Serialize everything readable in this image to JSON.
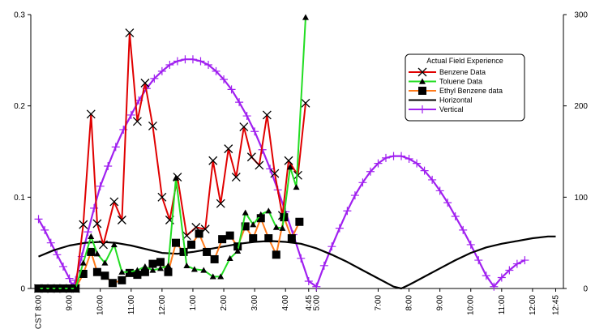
{
  "chart_data": {
    "type": "line",
    "title": "",
    "xlabel": "",
    "ylabel": "",
    "x_tick_labels": [
      "CST 8:00",
      "9:00",
      "10:00",
      "11:00",
      "12:00",
      "1:00",
      "2:00",
      "3:00",
      "4:00",
      "4:45",
      "5:00",
      "7:00",
      "8:00",
      "9:00",
      "10:00",
      "11:00",
      "12:00",
      "12:45"
    ],
    "x_tick_hours": [
      8,
      9,
      10,
      11,
      12,
      13,
      14,
      15,
      16,
      16.75,
      17,
      19,
      20,
      21,
      22,
      23,
      24,
      24.75
    ],
    "xlim": [
      7.75,
      25
    ],
    "y_left": {
      "ylim": [
        0,
        0.3
      ],
      "ticks": [
        0,
        0.1,
        0.2,
        0.3
      ],
      "tick_labels": [
        "0",
        "0.1",
        "0.2",
        "0.3"
      ]
    },
    "y_right": {
      "ylim": [
        0,
        300
      ],
      "ticks": [
        0,
        100,
        200,
        300
      ],
      "tick_labels": [
        "0",
        "100",
        "200",
        "300"
      ]
    },
    "legend": {
      "title": "Actual Field Experience",
      "placement": "top-right"
    },
    "series": [
      {
        "name": "Benzene Data",
        "axis": "left",
        "color": "#e00000",
        "marker": "x",
        "points": [
          [
            8,
            0
          ],
          [
            8.2,
            0
          ],
          [
            8.4,
            0
          ],
          [
            8.6,
            0
          ],
          [
            8.8,
            0
          ],
          [
            9,
            0
          ],
          [
            9.2,
            0
          ],
          [
            9.45,
            0.07
          ],
          [
            9.7,
            0.191
          ],
          [
            9.9,
            0.071
          ],
          [
            10.1,
            0.048
          ],
          [
            10.45,
            0.095
          ],
          [
            10.7,
            0.075
          ],
          [
            10.95,
            0.28
          ],
          [
            11.2,
            0.183
          ],
          [
            11.45,
            0.225
          ],
          [
            11.7,
            0.178
          ],
          [
            12.0,
            0.1
          ],
          [
            12.25,
            0.075
          ],
          [
            12.5,
            0.122
          ],
          [
            12.8,
            0.058
          ],
          [
            13.1,
            0.067
          ],
          [
            13.4,
            0.065
          ],
          [
            13.65,
            0.14
          ],
          [
            13.9,
            0.093
          ],
          [
            14.15,
            0.153
          ],
          [
            14.4,
            0.122
          ],
          [
            14.65,
            0.177
          ],
          [
            14.9,
            0.144
          ],
          [
            15.15,
            0.135
          ],
          [
            15.4,
            0.19
          ],
          [
            15.65,
            0.126
          ],
          [
            15.9,
            0.08
          ],
          [
            16.1,
            0.14
          ],
          [
            16.4,
            0.124
          ],
          [
            16.65,
            0.203
          ]
        ]
      },
      {
        "name": "Toluene Data",
        "axis": "left",
        "color": "#22dd22",
        "marker": "triangle",
        "points": [
          [
            8,
            0
          ],
          [
            8.2,
            0
          ],
          [
            8.4,
            0
          ],
          [
            8.6,
            0
          ],
          [
            8.8,
            0
          ],
          [
            9,
            0
          ],
          [
            9.2,
            0
          ],
          [
            9.45,
            0.028
          ],
          [
            9.7,
            0.057
          ],
          [
            9.9,
            0.038
          ],
          [
            10.15,
            0.028
          ],
          [
            10.45,
            0.048
          ],
          [
            10.7,
            0.018
          ],
          [
            10.95,
            0.018
          ],
          [
            11.2,
            0.02
          ],
          [
            11.45,
            0.024
          ],
          [
            11.7,
            0.02
          ],
          [
            11.95,
            0.022
          ],
          [
            12.2,
            0.025
          ],
          [
            12.45,
            0.121
          ],
          [
            12.8,
            0.025
          ],
          [
            13.05,
            0.021
          ],
          [
            13.35,
            0.02
          ],
          [
            13.65,
            0.013
          ],
          [
            13.9,
            0.013
          ],
          [
            14.2,
            0.033
          ],
          [
            14.45,
            0.041
          ],
          [
            14.7,
            0.083
          ],
          [
            14.95,
            0.07
          ],
          [
            15.2,
            0.081
          ],
          [
            15.45,
            0.085
          ],
          [
            15.7,
            0.067
          ],
          [
            15.9,
            0.066
          ],
          [
            16.15,
            0.133
          ],
          [
            16.35,
            0.111
          ],
          [
            16.65,
            0.297
          ]
        ]
      },
      {
        "name": "Ethyl Benzene data",
        "axis": "left",
        "color": "#ff7a1a",
        "marker": "square",
        "points": [
          [
            8,
            0
          ],
          [
            8.2,
            0
          ],
          [
            8.4,
            0
          ],
          [
            8.6,
            0
          ],
          [
            8.8,
            0
          ],
          [
            9,
            0
          ],
          [
            9.2,
            0
          ],
          [
            9.45,
            0.016
          ],
          [
            9.7,
            0.04
          ],
          [
            9.9,
            0.018
          ],
          [
            10.15,
            0.014
          ],
          [
            10.4,
            0.006
          ],
          [
            10.7,
            0.009
          ],
          [
            10.95,
            0.017
          ],
          [
            11.2,
            0.015
          ],
          [
            11.45,
            0.018
          ],
          [
            11.7,
            0.027
          ],
          [
            11.95,
            0.029
          ],
          [
            12.2,
            0.018
          ],
          [
            12.45,
            0.05
          ],
          [
            12.7,
            0.04
          ],
          [
            12.95,
            0.048
          ],
          [
            13.2,
            0.06
          ],
          [
            13.45,
            0.04
          ],
          [
            13.7,
            0.032
          ],
          [
            13.95,
            0.054
          ],
          [
            14.2,
            0.058
          ],
          [
            14.45,
            0.046
          ],
          [
            14.7,
            0.068
          ],
          [
            14.95,
            0.055
          ],
          [
            15.2,
            0.077
          ],
          [
            15.45,
            0.055
          ],
          [
            15.7,
            0.037
          ],
          [
            15.95,
            0.078
          ],
          [
            16.2,
            0.055
          ],
          [
            16.45,
            0.073
          ]
        ]
      },
      {
        "name": "Horizontal",
        "axis": "right",
        "color": "#000000",
        "marker": "none",
        "points": [
          [
            8,
            35
          ],
          [
            8.5,
            42
          ],
          [
            9,
            47
          ],
          [
            9.5,
            50
          ],
          [
            10,
            51
          ],
          [
            10.5,
            50
          ],
          [
            11,
            47
          ],
          [
            11.5,
            43
          ],
          [
            12,
            39
          ],
          [
            12.5,
            38
          ],
          [
            13,
            40
          ],
          [
            13.5,
            43
          ],
          [
            14,
            46
          ],
          [
            14.5,
            49
          ],
          [
            15,
            51
          ],
          [
            15.5,
            52
          ],
          [
            16,
            51
          ],
          [
            16.5,
            49
          ],
          [
            17,
            44
          ],
          [
            17.5,
            37
          ],
          [
            18,
            29
          ],
          [
            18.5,
            20
          ],
          [
            19,
            11
          ],
          [
            19.5,
            2
          ],
          [
            19.75,
            0
          ],
          [
            20,
            4
          ],
          [
            20.5,
            13
          ],
          [
            21,
            22
          ],
          [
            21.5,
            31
          ],
          [
            22,
            39
          ],
          [
            22.5,
            45
          ],
          [
            23,
            49
          ],
          [
            23.5,
            52
          ],
          [
            24,
            55
          ],
          [
            24.5,
            57
          ],
          [
            24.75,
            57
          ]
        ]
      },
      {
        "name": "Vertical",
        "axis": "right",
        "color": "#a020f0",
        "marker": "plus",
        "points": [
          [
            8,
            76
          ],
          [
            8.2,
            64
          ],
          [
            8.4,
            50
          ],
          [
            8.6,
            37
          ],
          [
            8.8,
            24
          ],
          [
            9,
            11
          ],
          [
            9.1,
            2
          ],
          [
            9.2,
            9
          ],
          [
            9.4,
            35
          ],
          [
            9.6,
            62
          ],
          [
            9.8,
            88
          ],
          [
            10,
            112
          ],
          [
            10.25,
            134
          ],
          [
            10.5,
            155
          ],
          [
            10.75,
            174
          ],
          [
            11,
            190
          ],
          [
            11.25,
            206
          ],
          [
            11.5,
            219
          ],
          [
            11.75,
            230
          ],
          [
            12,
            238
          ],
          [
            12.25,
            245
          ],
          [
            12.5,
            249
          ],
          [
            12.75,
            251
          ],
          [
            13,
            251
          ],
          [
            13.25,
            249
          ],
          [
            13.5,
            245
          ],
          [
            13.75,
            238
          ],
          [
            14,
            229
          ],
          [
            14.25,
            218
          ],
          [
            14.5,
            204
          ],
          [
            14.75,
            189
          ],
          [
            15,
            172
          ],
          [
            15.25,
            152
          ],
          [
            15.5,
            131
          ],
          [
            15.75,
            108
          ],
          [
            16,
            84
          ],
          [
            16.25,
            59
          ],
          [
            16.5,
            33
          ],
          [
            16.75,
            8
          ],
          [
            17,
            2
          ],
          [
            17.25,
            25
          ],
          [
            17.5,
            46
          ],
          [
            17.75,
            66
          ],
          [
            18,
            85
          ],
          [
            18.25,
            102
          ],
          [
            18.5,
            116
          ],
          [
            18.75,
            128
          ],
          [
            19,
            137
          ],
          [
            19.25,
            143
          ],
          [
            19.5,
            145
          ],
          [
            19.75,
            145
          ],
          [
            20,
            142
          ],
          [
            20.25,
            137
          ],
          [
            20.5,
            129
          ],
          [
            20.75,
            119
          ],
          [
            21,
            107
          ],
          [
            21.25,
            94
          ],
          [
            21.5,
            79
          ],
          [
            21.75,
            64
          ],
          [
            22,
            48
          ],
          [
            22.25,
            31
          ],
          [
            22.5,
            14
          ],
          [
            22.75,
            2
          ],
          [
            23,
            12
          ],
          [
            23.25,
            20
          ],
          [
            23.5,
            27
          ],
          [
            23.75,
            31
          ]
        ]
      }
    ]
  }
}
